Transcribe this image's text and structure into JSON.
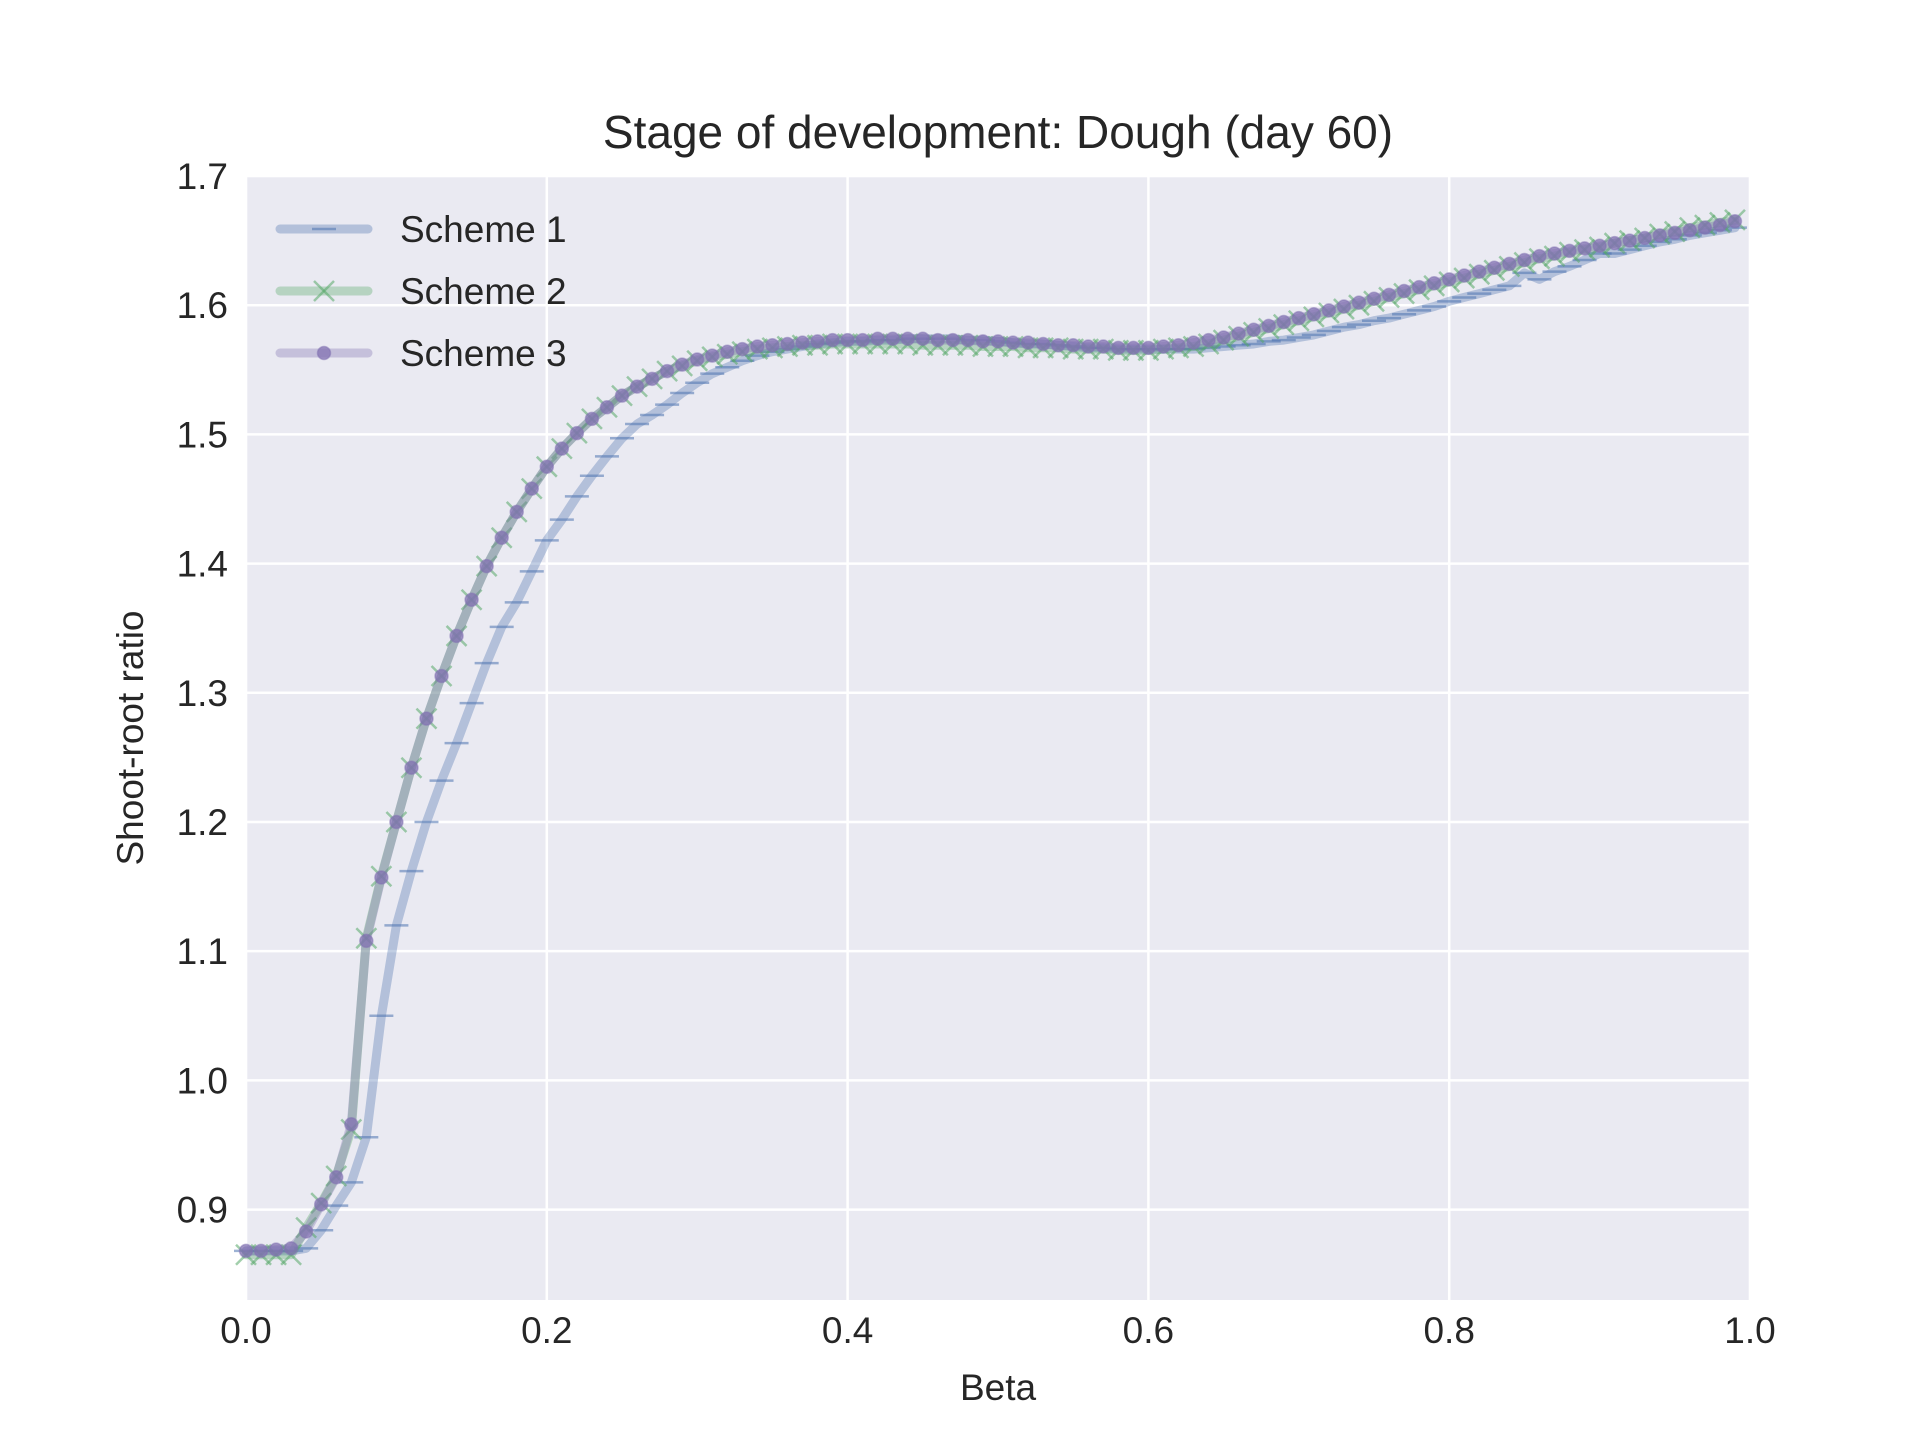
{
  "chart_data": {
    "type": "line",
    "title": "Stage of development: Dough (day 60)",
    "xlabel": "Beta",
    "ylabel": "Shoot-root ratio",
    "xlim": [
      0.0,
      1.0
    ],
    "ylim": [
      0.83,
      1.7
    ],
    "xticks": [
      "0.0",
      "0.2",
      "0.4",
      "0.6",
      "0.8",
      "1.0"
    ],
    "yticks": [
      "0.9",
      "1.0",
      "1.1",
      "1.2",
      "1.3",
      "1.4",
      "1.5",
      "1.6",
      "1.7"
    ],
    "grid": true,
    "legend_position": "upper-left",
    "background_color": "#EAEAF2",
    "x": [
      0.0,
      0.01,
      0.02,
      0.03,
      0.04,
      0.05,
      0.06,
      0.07,
      0.08,
      0.09,
      0.1,
      0.11,
      0.12,
      0.13,
      0.14,
      0.15,
      0.16,
      0.17,
      0.18,
      0.19,
      0.2,
      0.21,
      0.22,
      0.23,
      0.24,
      0.25,
      0.26,
      0.27,
      0.28,
      0.29,
      0.3,
      0.31,
      0.32,
      0.33,
      0.34,
      0.35,
      0.36,
      0.37,
      0.38,
      0.39,
      0.4,
      0.41,
      0.42,
      0.43,
      0.44,
      0.45,
      0.46,
      0.47,
      0.48,
      0.49,
      0.5,
      0.51,
      0.52,
      0.53,
      0.54,
      0.55,
      0.56,
      0.57,
      0.58,
      0.59,
      0.6,
      0.61,
      0.62,
      0.63,
      0.64,
      0.65,
      0.66,
      0.67,
      0.68,
      0.69,
      0.7,
      0.71,
      0.72,
      0.73,
      0.74,
      0.75,
      0.76,
      0.77,
      0.78,
      0.79,
      0.8,
      0.81,
      0.82,
      0.83,
      0.84,
      0.85,
      0.86,
      0.87,
      0.88,
      0.89,
      0.9,
      0.91,
      0.92,
      0.93,
      0.94,
      0.95,
      0.96,
      0.97,
      0.98,
      0.99
    ],
    "series": [
      {
        "name": "Scheme 1",
        "color": "#4C72B0",
        "marker": "hline",
        "values": [
          0.868,
          0.868,
          0.868,
          0.868,
          0.87,
          0.884,
          0.903,
          0.921,
          0.956,
          1.05,
          1.12,
          1.162,
          1.2,
          1.232,
          1.261,
          1.292,
          1.323,
          1.351,
          1.37,
          1.394,
          1.418,
          1.434,
          1.452,
          1.468,
          1.483,
          1.497,
          1.508,
          1.515,
          1.523,
          1.532,
          1.54,
          1.547,
          1.552,
          1.557,
          1.561,
          1.564,
          1.566,
          1.568,
          1.57,
          1.571,
          1.572,
          1.572,
          1.573,
          1.573,
          1.574,
          1.574,
          1.574,
          1.574,
          1.573,
          1.573,
          1.572,
          1.571,
          1.57,
          1.57,
          1.569,
          1.568,
          1.567,
          1.567,
          1.566,
          1.566,
          1.566,
          1.566,
          1.566,
          1.566,
          1.567,
          1.568,
          1.569,
          1.57,
          1.572,
          1.573,
          1.575,
          1.577,
          1.58,
          1.583,
          1.585,
          1.588,
          1.59,
          1.593,
          1.596,
          1.599,
          1.603,
          1.606,
          1.609,
          1.612,
          1.615,
          1.625,
          1.62,
          1.626,
          1.63,
          1.635,
          1.64,
          1.64,
          1.643,
          1.646,
          1.649,
          1.651,
          1.654,
          1.656,
          1.658,
          1.66
        ]
      },
      {
        "name": "Scheme 2",
        "color": "#55A868",
        "marker": "x",
        "values": [
          0.865,
          0.865,
          0.865,
          0.865,
          0.886,
          0.905,
          0.926,
          0.962,
          1.11,
          1.158,
          1.2,
          1.242,
          1.28,
          1.313,
          1.344,
          1.372,
          1.398,
          1.42,
          1.44,
          1.458,
          1.475,
          1.489,
          1.501,
          1.512,
          1.521,
          1.53,
          1.537,
          1.543,
          1.549,
          1.553,
          1.557,
          1.56,
          1.562,
          1.564,
          1.566,
          1.567,
          1.568,
          1.569,
          1.569,
          1.57,
          1.57,
          1.57,
          1.57,
          1.57,
          1.57,
          1.569,
          1.569,
          1.569,
          1.569,
          1.568,
          1.568,
          1.568,
          1.567,
          1.567,
          1.567,
          1.566,
          1.566,
          1.566,
          1.565,
          1.565,
          1.565,
          1.566,
          1.567,
          1.568,
          1.57,
          1.573,
          1.576,
          1.579,
          1.582,
          1.585,
          1.588,
          1.591,
          1.594,
          1.597,
          1.6,
          1.603,
          1.606,
          1.609,
          1.612,
          1.615,
          1.618,
          1.621,
          1.624,
          1.627,
          1.63,
          1.633,
          1.636,
          1.638,
          1.641,
          1.643,
          1.645,
          1.648,
          1.65,
          1.652,
          1.655,
          1.657,
          1.66,
          1.662,
          1.664,
          1.666
        ]
      },
      {
        "name": "Scheme 3",
        "color": "#8172B2",
        "marker": "o",
        "values": [
          0.868,
          0.868,
          0.869,
          0.87,
          0.883,
          0.904,
          0.925,
          0.966,
          1.108,
          1.157,
          1.2,
          1.242,
          1.28,
          1.313,
          1.344,
          1.372,
          1.398,
          1.42,
          1.44,
          1.458,
          1.475,
          1.489,
          1.501,
          1.512,
          1.521,
          1.53,
          1.537,
          1.543,
          1.549,
          1.554,
          1.558,
          1.561,
          1.564,
          1.566,
          1.568,
          1.569,
          1.57,
          1.571,
          1.572,
          1.573,
          1.573,
          1.573,
          1.574,
          1.574,
          1.574,
          1.574,
          1.573,
          1.573,
          1.573,
          1.572,
          1.572,
          1.571,
          1.571,
          1.57,
          1.569,
          1.569,
          1.568,
          1.568,
          1.567,
          1.567,
          1.567,
          1.568,
          1.569,
          1.571,
          1.573,
          1.575,
          1.578,
          1.581,
          1.584,
          1.587,
          1.59,
          1.593,
          1.596,
          1.599,
          1.602,
          1.605,
          1.608,
          1.611,
          1.614,
          1.617,
          1.62,
          1.623,
          1.626,
          1.629,
          1.632,
          1.635,
          1.638,
          1.64,
          1.642,
          1.644,
          1.646,
          1.648,
          1.65,
          1.652,
          1.654,
          1.656,
          1.658,
          1.66,
          1.662,
          1.665
        ]
      }
    ]
  }
}
